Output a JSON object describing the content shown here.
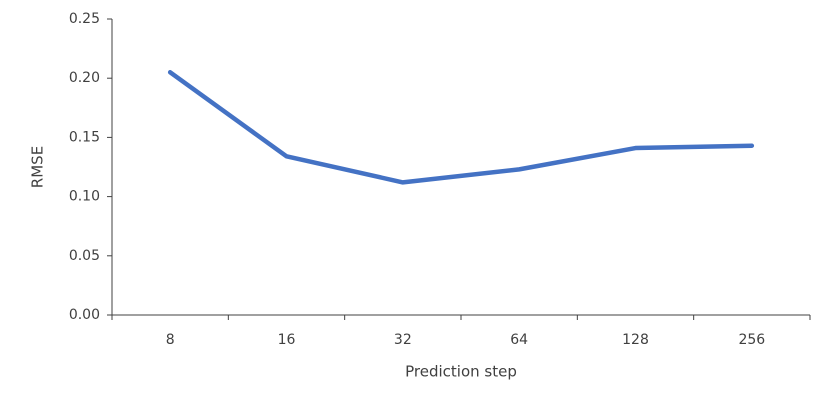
{
  "chart_data": {
    "type": "line",
    "x_label": "Prediction step",
    "y_label": "RMSE",
    "categories": [
      "8",
      "16",
      "32",
      "64",
      "128",
      "256"
    ],
    "values": [
      0.205,
      0.134,
      0.112,
      0.123,
      0.141,
      0.143
    ],
    "color": "#4472c4",
    "ylim": [
      0,
      0.25
    ],
    "yticks": [
      {
        "value": 0,
        "label": "0.00"
      },
      0.05,
      {
        "value": 0.1,
        "label": "0.10"
      },
      0.15,
      {
        "value": 0.2,
        "label": "0.20"
      },
      0.25
    ],
    "grid": false
  }
}
